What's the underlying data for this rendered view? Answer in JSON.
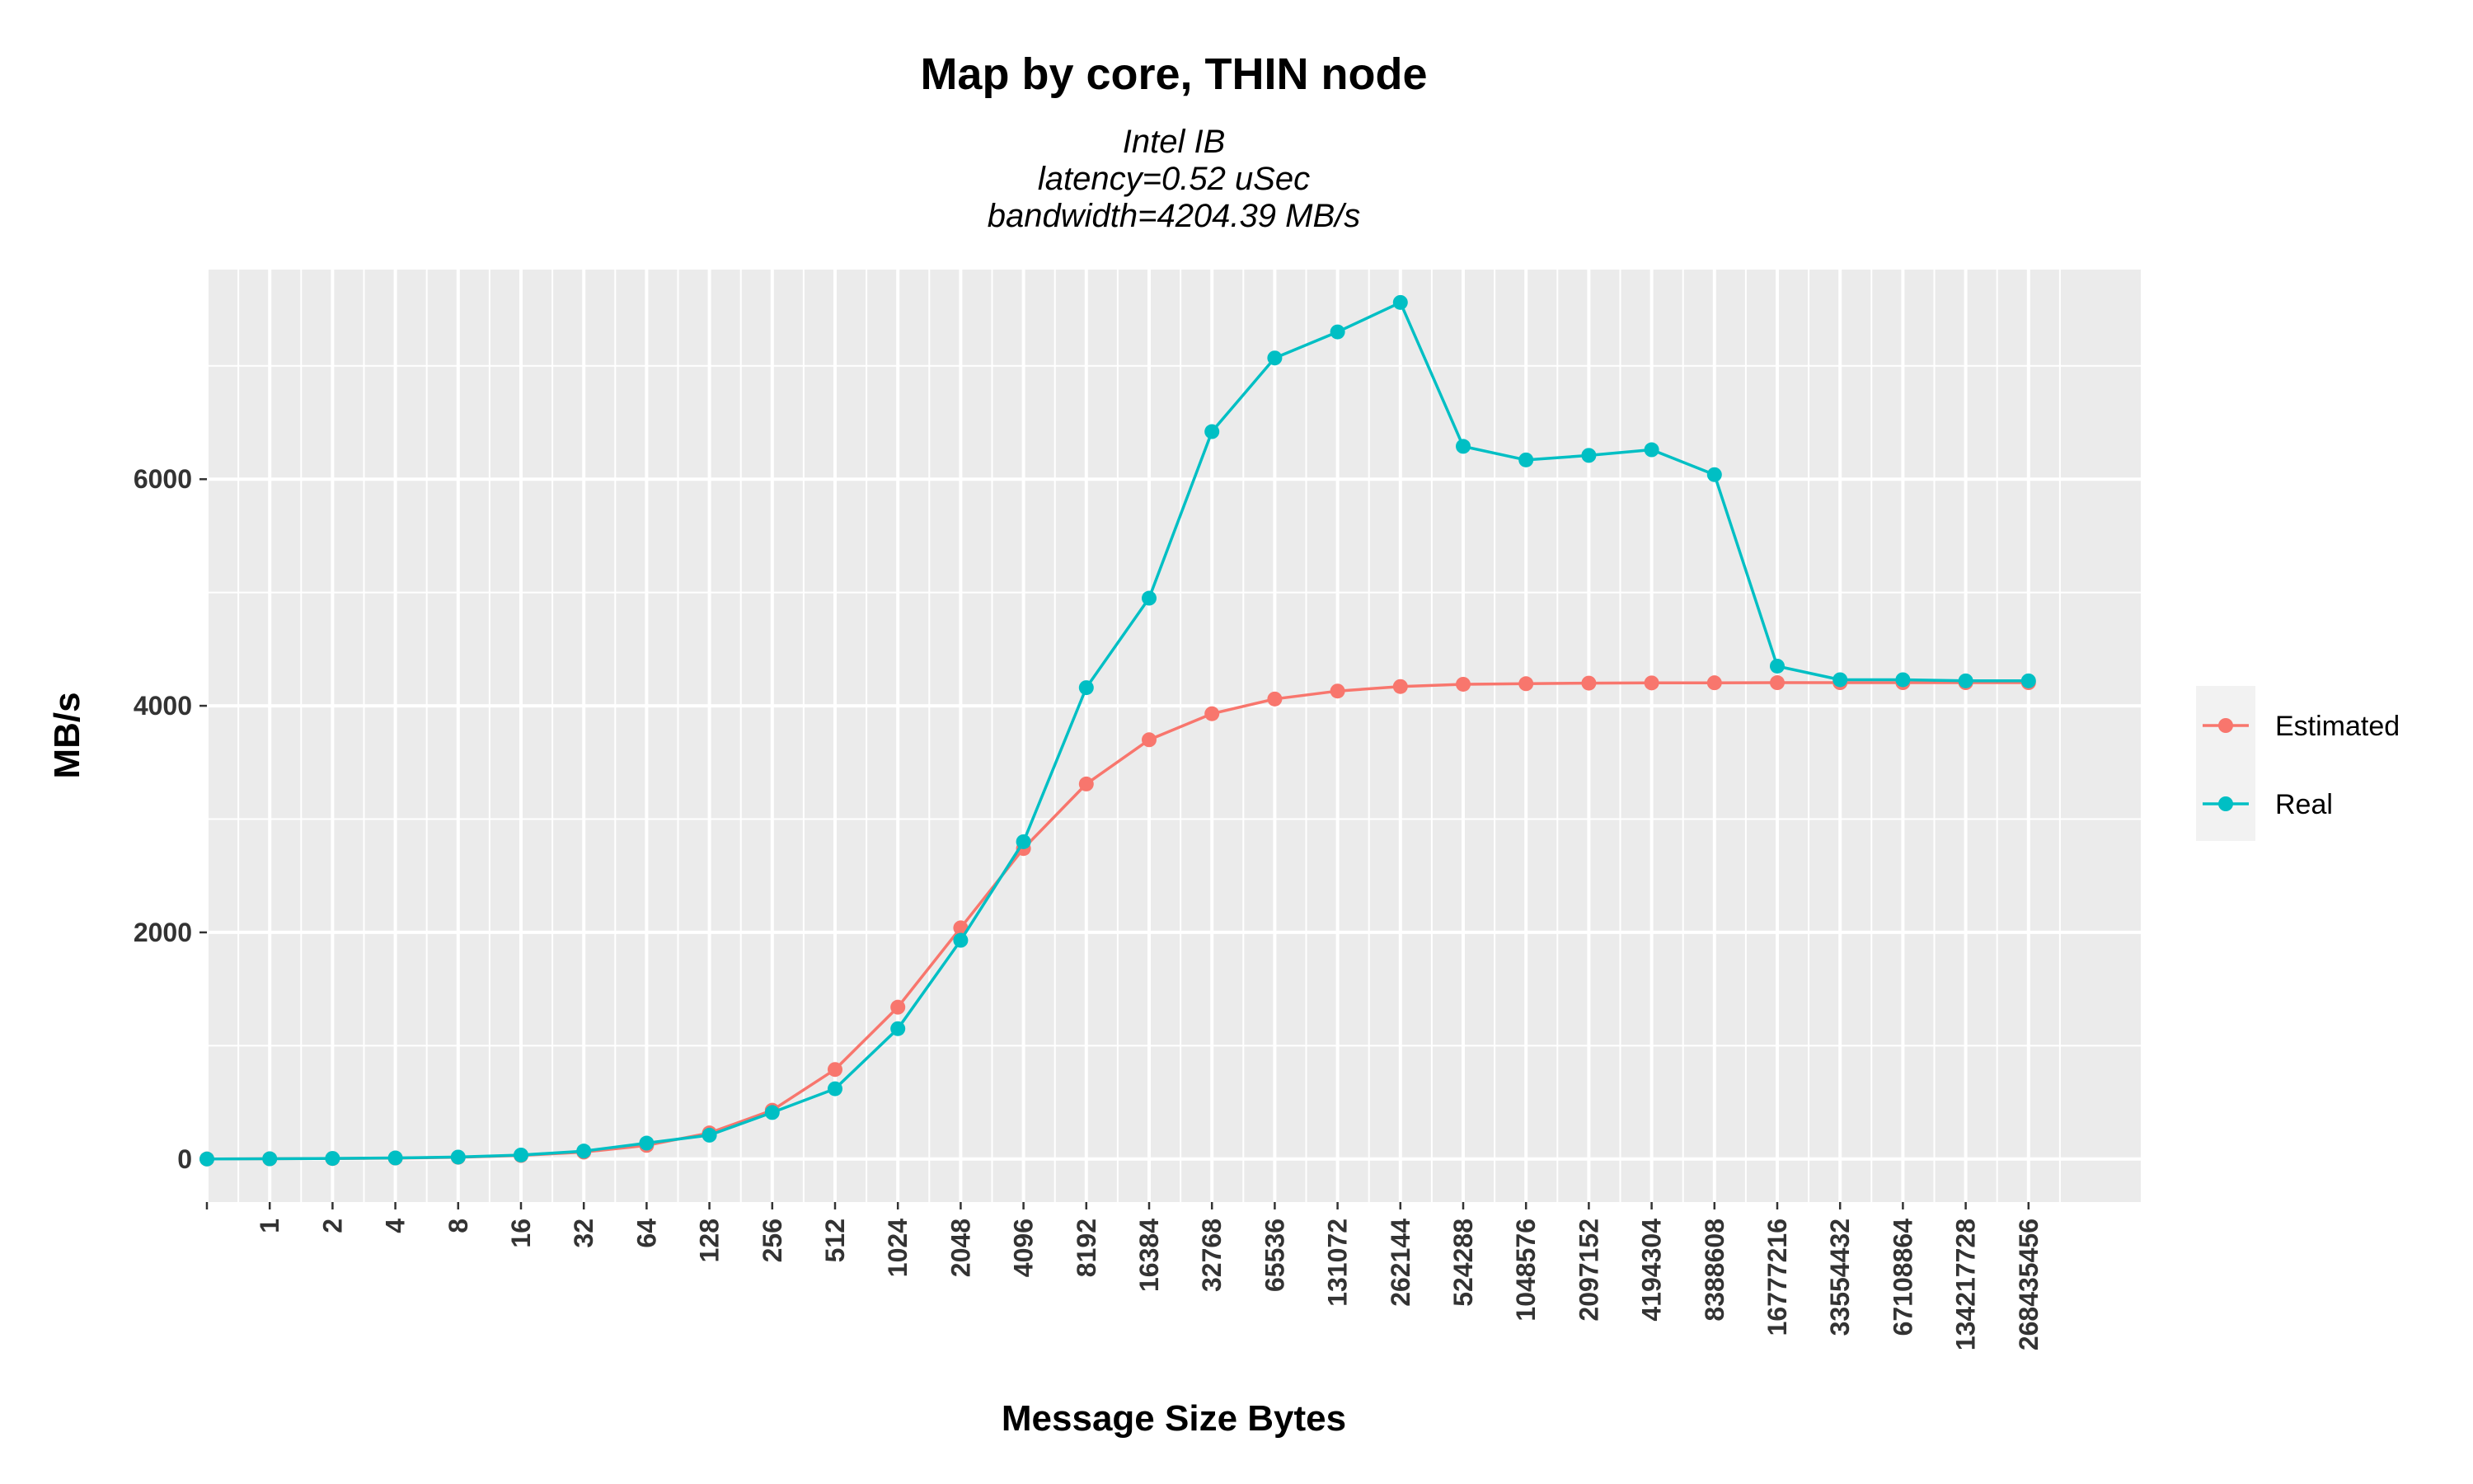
{
  "chart_data": {
    "type": "line",
    "title": "Map by core, THIN node",
    "subtitle_lines": [
      "Intel IB",
      "latency=0.52 uSec",
      "bandwidth=4204.39 MB/s"
    ],
    "xlabel": "Message Size Bytes",
    "ylabel": "MB/s",
    "x_ticks_shown": [
      "1",
      "2",
      "4",
      "8",
      "16",
      "32",
      "64",
      "128",
      "256",
      "512",
      "1024",
      "2048",
      "4096",
      "8192",
      "16384",
      "32768",
      "65536",
      "131072",
      "262144",
      "524288",
      "1048576",
      "2097152",
      "4194304",
      "8388608",
      "16777216",
      "33554432",
      "67108864",
      "134217728",
      "268435456"
    ],
    "x": [
      "0",
      "1",
      "2",
      "4",
      "8",
      "16",
      "32",
      "64",
      "128",
      "256",
      "512",
      "1024",
      "2048",
      "4096",
      "8192",
      "16384",
      "32768",
      "65536",
      "131072",
      "262144",
      "524288",
      "1048576",
      "2097152",
      "4194304",
      "8388608",
      "16777216",
      "33554432",
      "67108864",
      "134217728",
      "268435456"
    ],
    "y_ticks": [
      0,
      2000,
      4000,
      6000
    ],
    "ylim": [
      -380,
      7850
    ],
    "grid": true,
    "legend_position": "right",
    "series": [
      {
        "name": "Estimated",
        "color": "#F8766D",
        "values": [
          0,
          2,
          4,
          8,
          15,
          31,
          61,
          120,
          230,
          430,
          790,
          1340,
          2040,
          2740,
          3310,
          3700,
          3930,
          4060,
          4130,
          4170,
          4190,
          4195,
          4200,
          4202,
          4203,
          4204,
          4204,
          4204,
          4204,
          4204
        ]
      },
      {
        "name": "Real",
        "color": "#00BFC4",
        "values": [
          0,
          2,
          5,
          9,
          17,
          35,
          70,
          140,
          210,
          410,
          620,
          1150,
          1930,
          2800,
          4160,
          4950,
          6420,
          7070,
          7300,
          7560,
          6290,
          6170,
          6210,
          6260,
          6040,
          4350,
          4230,
          4230,
          4220,
          4220
        ]
      }
    ]
  }
}
